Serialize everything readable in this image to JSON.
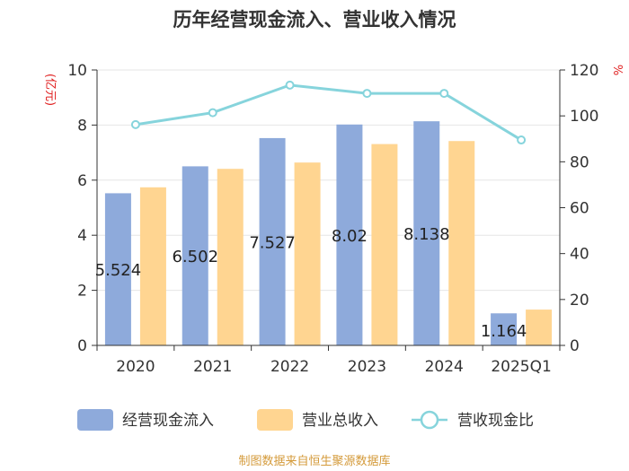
{
  "chart_data": {
    "type": "bar",
    "title": "历年经营现金流入、营业收入情况",
    "categories": [
      "2020",
      "2021",
      "2022",
      "2023",
      "2024",
      "2025Q1"
    ],
    "left_axis": {
      "unit": "(亿元)",
      "range": [
        0,
        10
      ],
      "ticks": [
        "0",
        "2",
        "4",
        "6",
        "8",
        "10"
      ]
    },
    "right_axis": {
      "unit": "%",
      "range": [
        0,
        120
      ],
      "ticks": [
        "0",
        "20",
        "40",
        "60",
        "80",
        "100",
        "120"
      ]
    },
    "series": [
      {
        "name": "经营现金流入",
        "kind": "bar",
        "axis": "left",
        "color": "#8eaadb",
        "values": [
          5.524,
          6.502,
          7.527,
          8.02,
          8.138,
          1.164
        ],
        "labels": [
          "5.524",
          "6.502",
          "7.527",
          "8.02",
          "8.138",
          "1.164"
        ]
      },
      {
        "name": "营业总收入",
        "kind": "bar",
        "axis": "left",
        "color": "#ffd591",
        "values": [
          5.74,
          6.41,
          6.64,
          7.31,
          7.42,
          1.3
        ]
      },
      {
        "name": "营收现金比",
        "kind": "line",
        "axis": "right",
        "color": "#86d4dc",
        "values": [
          96.2,
          101.4,
          113.4,
          109.8,
          109.8,
          89.5
        ]
      }
    ],
    "grid": true,
    "legend_position": "bottom"
  },
  "source_text": "制图数据来自恒生聚源数据库",
  "colors": {
    "unit": "#e02020",
    "source": "#d49a3a",
    "axis": "#333333",
    "grid": "#e6e6e6"
  }
}
